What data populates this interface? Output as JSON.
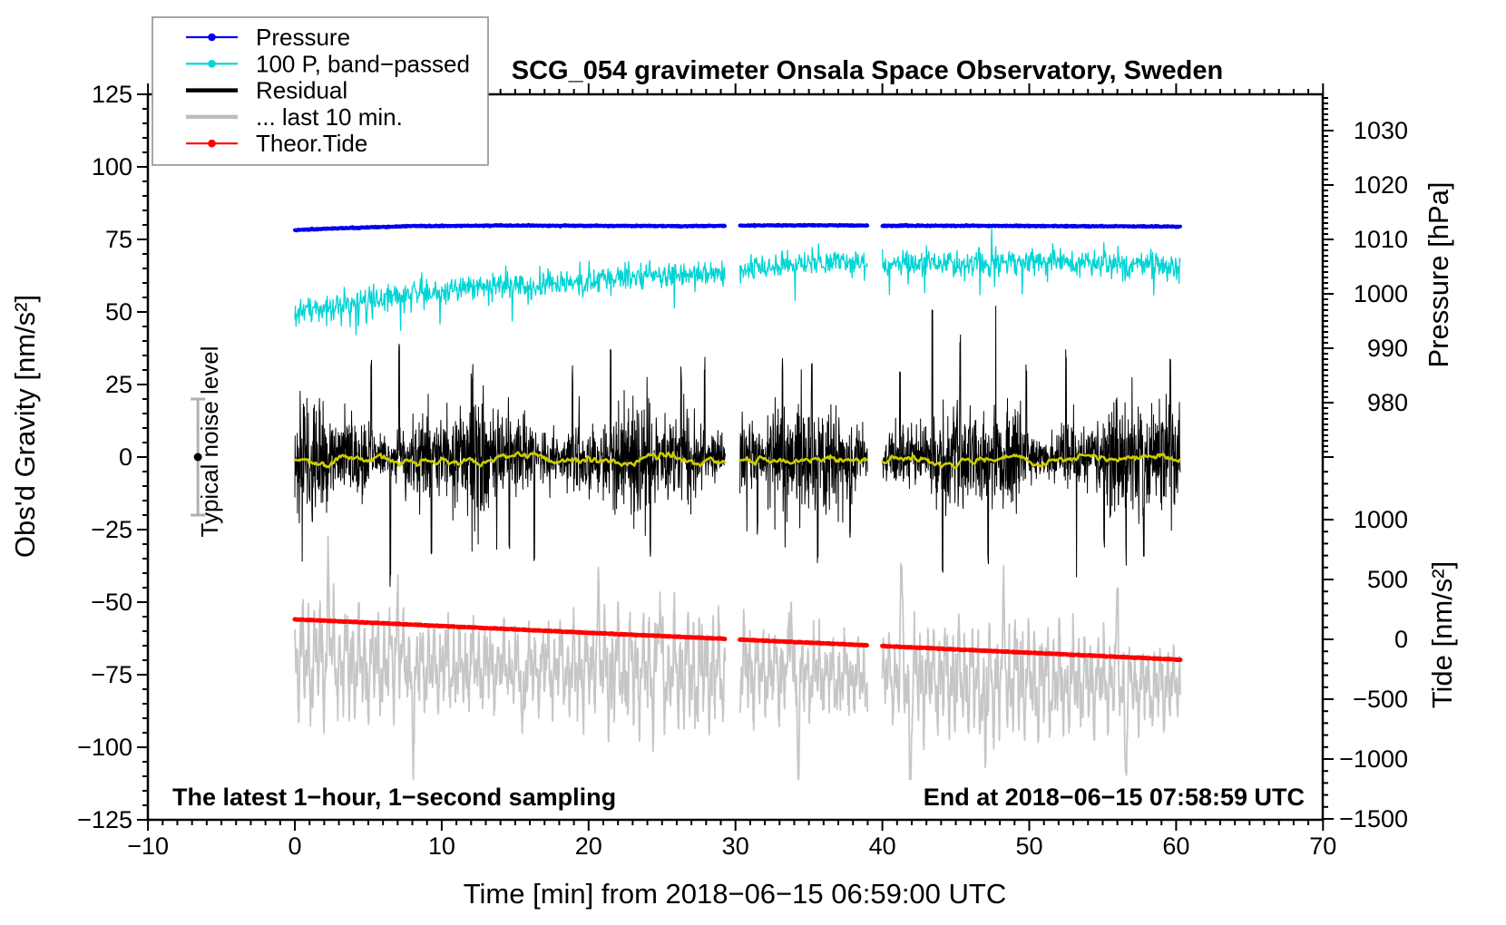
{
  "chart_data": {
    "type": "line",
    "title": "SCG_054 gravimeter Onsala Space Observatory, Sweden",
    "x_axis": {
      "label": "Time [min] from 2018−06−15 06:59:00 UTC",
      "min": -10,
      "max": 70,
      "major_tick": 10,
      "minor_tick": 1,
      "tick_labels": [
        "−10",
        "0",
        "10",
        "20",
        "30",
        "40",
        "50",
        "60",
        "70"
      ]
    },
    "y_left_axis": {
      "label": "Obs'd Gravity [nm/s²]",
      "min": -125,
      "max": 125,
      "major_tick": 25,
      "minor_tick": 5,
      "tick_labels": [
        "125",
        "100",
        "75",
        "50",
        "25",
        "0",
        "−25",
        "−50",
        "−75",
        "−100",
        "−125"
      ]
    },
    "y_right_pressure_axis": {
      "label": "Pressure [hPa]",
      "major_tick": 10,
      "minor_tick": 1,
      "top_value": 1036,
      "bottom_value": 970,
      "tick_labels": [
        "1030",
        "1020",
        "1010",
        "1000",
        "990",
        "980"
      ]
    },
    "y_right_tide_axis": {
      "label": "Tide [nm/s²]",
      "major_tick": 500,
      "minor_tick": 100,
      "top_value": 1400,
      "bottom_value": -1500,
      "tick_labels": [
        "1000",
        "500",
        "0",
        "−500",
        "−1000",
        "−1500"
      ]
    },
    "time_segments": [
      [
        0,
        29.3
      ],
      [
        30.3,
        39.0
      ],
      [
        40.0,
        60.3
      ]
    ],
    "series": [
      {
        "id": "pressure",
        "name": "Pressure",
        "axis": "pressure",
        "color": "#0000ee",
        "anchors": [
          [
            0,
            1011.7
          ],
          [
            3,
            1012.05
          ],
          [
            8,
            1012.45
          ],
          [
            14,
            1012.55
          ],
          [
            20,
            1012.5
          ],
          [
            26,
            1012.45
          ],
          [
            29.3,
            1012.5
          ],
          [
            30.3,
            1012.55
          ],
          [
            35,
            1012.6
          ],
          [
            39,
            1012.55
          ],
          [
            40,
            1012.5
          ],
          [
            46,
            1012.5
          ],
          [
            52,
            1012.45
          ],
          [
            57,
            1012.4
          ],
          [
            60.3,
            1012.35
          ]
        ],
        "noise_sigma": 0.05
      },
      {
        "id": "band_passed",
        "name": "100 P, band−passed",
        "axis": "gravity",
        "color": "#00d4d4",
        "anchors": [
          [
            0,
            49
          ],
          [
            2,
            52
          ],
          [
            5,
            54
          ],
          [
            8,
            56
          ],
          [
            12,
            58
          ],
          [
            16,
            59
          ],
          [
            20,
            61
          ],
          [
            24,
            62
          ],
          [
            27,
            63
          ],
          [
            29.3,
            63
          ],
          [
            30.3,
            65
          ],
          [
            33,
            66
          ],
          [
            35.3,
            67
          ],
          [
            39,
            66
          ],
          [
            40,
            66
          ],
          [
            45,
            67
          ],
          [
            50,
            67
          ],
          [
            55,
            67
          ],
          [
            58,
            66
          ],
          [
            60.3,
            65
          ]
        ],
        "noise_sigma": 2.2
      },
      {
        "id": "residual",
        "name": "Residual",
        "axis": "gravity",
        "color": "#000000",
        "mean": 0,
        "noise_sigma": 7,
        "spikes": [
          [
            5.2,
            32
          ],
          [
            6.5,
            -40
          ],
          [
            7.1,
            39
          ],
          [
            9.3,
            -33
          ],
          [
            12.1,
            30
          ],
          [
            14.6,
            -28
          ],
          [
            16.3,
            -35
          ],
          [
            18.9,
            28
          ],
          [
            21.5,
            36
          ],
          [
            24.2,
            -30
          ],
          [
            26.3,
            29
          ],
          [
            27.9,
            31
          ],
          [
            31.5,
            -28
          ],
          [
            33.2,
            30
          ],
          [
            35.2,
            33
          ],
          [
            35.6,
            -34
          ],
          [
            37.8,
            -26
          ],
          [
            41.2,
            30
          ],
          [
            43.4,
            50
          ],
          [
            44.1,
            -38
          ],
          [
            45.3,
            40
          ],
          [
            47.2,
            -36
          ],
          [
            49.8,
            30
          ],
          [
            52.5,
            34
          ],
          [
            55.1,
            -30
          ],
          [
            57.8,
            -33
          ],
          [
            59.6,
            35
          ]
        ]
      },
      {
        "id": "residual_mean",
        "name": "Residual mean (low-passed)",
        "axis": "gravity",
        "color": "#cccc00",
        "mean": -1,
        "noise_sigma": 0.9
      },
      {
        "id": "last10",
        "name": "... last 10 min.",
        "axis": "gravity",
        "color": "#c6c6c6",
        "center_anchors": [
          [
            0,
            -70
          ],
          [
            10,
            -72
          ],
          [
            20,
            -73
          ],
          [
            30,
            -74
          ],
          [
            40,
            -76
          ],
          [
            50,
            -77
          ],
          [
            60.3,
            -79
          ]
        ],
        "osc_amplitude": 15,
        "features": [
          [
            2.3,
            28
          ],
          [
            7.0,
            24
          ],
          [
            8.1,
            -26
          ],
          [
            15.5,
            -22
          ],
          [
            20.6,
            26
          ],
          [
            24.8,
            22
          ],
          [
            33.8,
            24
          ],
          [
            34.3,
            -30
          ],
          [
            41.3,
            30
          ],
          [
            41.9,
            -33
          ],
          [
            47.0,
            -26
          ],
          [
            48.3,
            22
          ],
          [
            56.0,
            24
          ],
          [
            56.6,
            -25
          ]
        ]
      },
      {
        "id": "tide",
        "name": "Theor.Tide",
        "axis": "tide",
        "color": "#ff0000",
        "anchors": [
          [
            0,
            167
          ],
          [
            6,
            134
          ],
          [
            12,
            100
          ],
          [
            18,
            66
          ],
          [
            24,
            33
          ],
          [
            29.3,
            4
          ],
          [
            30.3,
            -2
          ],
          [
            35,
            -28
          ],
          [
            39,
            -50
          ],
          [
            40,
            -56
          ],
          [
            45,
            -84
          ],
          [
            50,
            -112
          ],
          [
            55,
            -140
          ],
          [
            60.3,
            -170
          ]
        ],
        "noise_sigma": 1.0
      }
    ],
    "legend": {
      "entries": [
        {
          "label": "Pressure",
          "color": "#0000ee",
          "marker": true,
          "thick": false
        },
        {
          "label": "100 P, band−passed",
          "color": "#00d4d4",
          "marker": true,
          "thick": false
        },
        {
          "label": "Residual",
          "color": "#000000",
          "marker": false,
          "thick": true
        },
        {
          "label": "... last 10 min.",
          "color": "#bdbdbd",
          "marker": false,
          "thick": true
        },
        {
          "label": "Theor.Tide",
          "color": "#ff0000",
          "marker": true,
          "thick": false
        }
      ]
    },
    "annotations": {
      "bottom_left": "The latest 1−hour, 1−second sampling",
      "bottom_right": "End at 2018−06−15 07:58:59 UTC"
    },
    "noise_bar": {
      "label": "Typical noise level",
      "t": -6.6,
      "center": 0,
      "half_height": 20
    }
  }
}
